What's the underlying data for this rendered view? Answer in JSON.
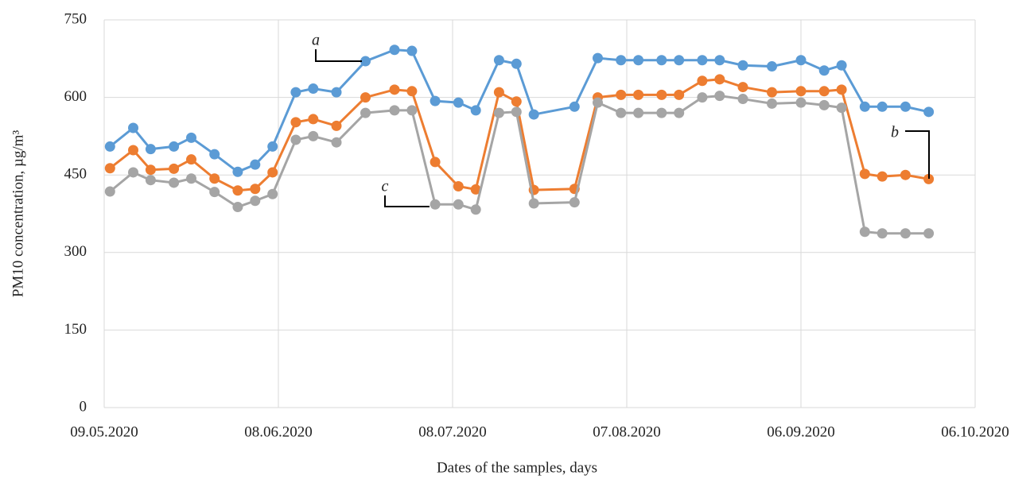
{
  "chart_data": {
    "type": "line",
    "xlabel": "Dates of the samples, days",
    "ylabel": "PM10 concentration, µg/m³",
    "x": [
      "10.05.2020",
      "14.05.2020",
      "17.05.2020",
      "21.05.2020",
      "24.05.2020",
      "28.05.2020",
      "01.06.2020",
      "04.06.2020",
      "07.06.2020",
      "11.06.2020",
      "14.06.2020",
      "18.06.2020",
      "23.06.2020",
      "28.06.2020",
      "01.07.2020",
      "05.07.2020",
      "09.07.2020",
      "12.07.2020",
      "16.07.2020",
      "19.07.2020",
      "22.07.2020",
      "29.07.2020",
      "02.08.2020",
      "06.08.2020",
      "09.08.2020",
      "13.08.2020",
      "16.08.2020",
      "20.08.2020",
      "23.08.2020",
      "27.08.2020",
      "01.09.2020",
      "06.09.2020",
      "10.09.2020",
      "13.09.2020",
      "17.09.2020",
      "20.09.2020",
      "24.09.2020",
      "28.09.2020"
    ],
    "series": [
      {
        "name": "a",
        "color": "#5b9bd5",
        "values": [
          505,
          541,
          500,
          505,
          522,
          490,
          456,
          470,
          505,
          610,
          617,
          610,
          670,
          692,
          690,
          593,
          590,
          575,
          672,
          665,
          567,
          582,
          676,
          672,
          672,
          672,
          672,
          672,
          672,
          662,
          660,
          672,
          652,
          662,
          582,
          582,
          582,
          572
        ]
      },
      {
        "name": "b",
        "color": "#ed7d31",
        "values": [
          463,
          498,
          460,
          462,
          480,
          443,
          420,
          423,
          455,
          552,
          558,
          545,
          600,
          615,
          612,
          475,
          428,
          422,
          610,
          592,
          421,
          423,
          600,
          605,
          605,
          605,
          605,
          632,
          635,
          620,
          610,
          612,
          612,
          615,
          452,
          447,
          450,
          442
        ]
      },
      {
        "name": "c",
        "color": "#a5a5a5",
        "values": [
          418,
          455,
          440,
          435,
          443,
          417,
          388,
          400,
          413,
          518,
          525,
          513,
          570,
          575,
          575,
          393,
          393,
          383,
          570,
          572,
          395,
          397,
          590,
          570,
          570,
          570,
          570,
          600,
          603,
          597,
          588,
          590,
          585,
          580,
          340,
          337,
          337,
          337
        ]
      }
    ],
    "xlim": [
      "09.05.2020",
      "06.10.2020"
    ],
    "xticks": [
      "09.05.2020",
      "08.06.2020",
      "08.07.2020",
      "07.08.2020",
      "06.09.2020",
      "06.10.2020"
    ],
    "ylim": [
      0,
      750
    ],
    "yticks": [
      0,
      150,
      300,
      450,
      600,
      750
    ],
    "grid": true
  }
}
